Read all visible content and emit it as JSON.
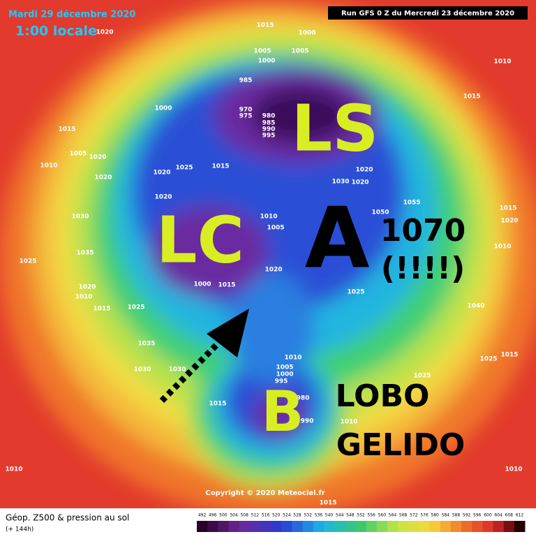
{
  "header": {
    "date": "Mardi 29 décembre 2020",
    "local_time": "1:00 locale",
    "run": "Run GFS 0 Z du Mercredi 23 décembre 2020"
  },
  "annotations": {
    "ls": "LS",
    "lc": "LC",
    "a": "A",
    "pressure": "1070",
    "exclaim": "(!!!!)",
    "b": "B",
    "lobo": "LOBO",
    "gelido": "GELIDO"
  },
  "isobar_labels": [
    "1015",
    "1000",
    "1005",
    "1005",
    "1000",
    "985",
    "1000",
    "970",
    "975",
    "980",
    "985",
    "990",
    "995",
    "1015",
    "1005",
    "1020",
    "1010",
    "1020",
    "1020",
    "1025",
    "1015",
    "1030",
    "1020",
    "1020",
    "1020",
    "1030",
    "1035",
    "1025",
    "1010",
    "1005",
    "1000",
    "1015",
    "1020",
    "1025",
    "1050",
    "1055",
    "1010",
    "1015",
    "1015",
    "1020",
    "1010",
    "1040",
    "1020",
    "1010",
    "1015",
    "1025",
    "1035",
    "1030",
    "1030",
    "1015",
    "1010",
    "1005",
    "1000",
    "995",
    "980",
    "990",
    "1010",
    "1025",
    "1015",
    "1025",
    "1010",
    "1010",
    "1015",
    "1020"
  ],
  "copyright": "Copyright © 2020 Meteociel.fr",
  "footer": {
    "title": "Géop. Z500 & pression au sol",
    "lead": "(+ 144h)"
  },
  "scale": [
    492,
    496,
    500,
    504,
    508,
    512,
    516,
    520,
    524,
    528,
    532,
    536,
    540,
    544,
    548,
    552,
    556,
    560,
    564,
    568,
    572,
    576,
    580,
    584,
    588,
    592,
    596,
    600,
    604,
    608,
    612
  ]
}
